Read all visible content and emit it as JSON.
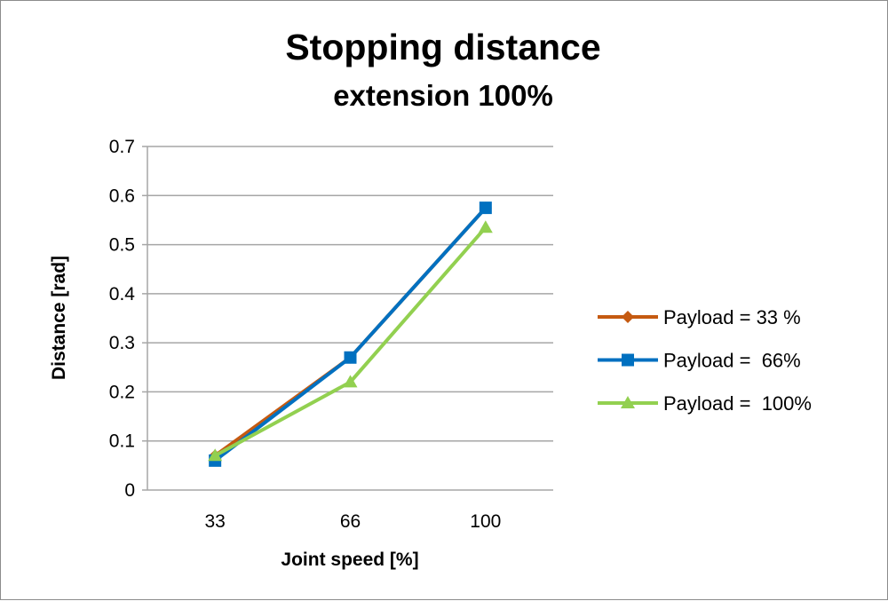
{
  "chart_data": {
    "type": "line",
    "title": "Stopping distance",
    "subtitle": "extension 100%",
    "xlabel": "Joint speed [%]",
    "ylabel": "Distance [rad]",
    "categories": [
      "33",
      "66",
      "100"
    ],
    "ylim": [
      0,
      0.7
    ],
    "yticks": [
      "0",
      "0.1",
      "0.2",
      "0.3",
      "0.4",
      "0.5",
      "0.6",
      "0.7"
    ],
    "grid": true,
    "legend_position": "right",
    "series": [
      {
        "name": "Payload = 33 %",
        "values": [
          0.07,
          0.27,
          0.575
        ],
        "color": "#C55A11",
        "marker": "diamond"
      },
      {
        "name": "Payload =  66%",
        "values": [
          0.06,
          0.27,
          0.575
        ],
        "color": "#0070C0",
        "marker": "square"
      },
      {
        "name": "Payload =  100%",
        "values": [
          0.07,
          0.22,
          0.535
        ],
        "color": "#92D050",
        "marker": "triangle"
      }
    ]
  }
}
